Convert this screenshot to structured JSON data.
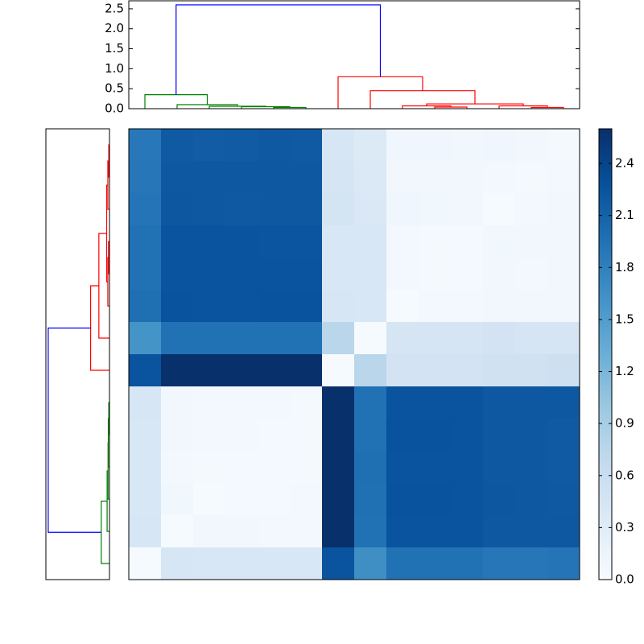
{
  "chart_data": [
    {
      "type": "dendrogram",
      "orientation": "top",
      "xlim": [
        0,
        140
      ],
      "ylim": [
        0,
        2.7
      ],
      "yticks": [
        {
          "value": 0,
          "label": "0.0"
        },
        0.5,
        {
          "value": 1,
          "label": "1.0"
        },
        1.5,
        {
          "value": 2,
          "label": "2.0"
        },
        2.5
      ],
      "links": [
        {
          "x": [
            45,
            45,
            55,
            55
          ],
          "y": [
            0,
            0.03,
            0.03,
            0
          ],
          "color": "#008000"
        },
        {
          "x": [
            35,
            35,
            50,
            50
          ],
          "y": [
            0,
            0.05,
            0.05,
            0.03
          ],
          "color": "#008000"
        },
        {
          "x": [
            25,
            25,
            42.5,
            42.5
          ],
          "y": [
            0,
            0.06,
            0.06,
            0.05
          ],
          "color": "#008000"
        },
        {
          "x": [
            15,
            15,
            33.75,
            33.75
          ],
          "y": [
            0,
            0.1,
            0.1,
            0.06
          ],
          "color": "#008000"
        },
        {
          "x": [
            5,
            5,
            24.375,
            24.375
          ],
          "y": [
            0,
            0.35,
            0.35,
            0.1
          ],
          "color": "#008000"
        },
        {
          "x": [
            95,
            95,
            105,
            105
          ],
          "y": [
            0,
            0.04,
            0.04,
            0
          ],
          "color": "#ff0000"
        },
        {
          "x": [
            85,
            85,
            100,
            100
          ],
          "y": [
            0,
            0.07,
            0.07,
            0.04
          ],
          "color": "#ff0000"
        },
        {
          "x": [
            125,
            125,
            135,
            135
          ],
          "y": [
            0,
            0.03,
            0.03,
            0
          ],
          "color": "#ff0000"
        },
        {
          "x": [
            115,
            115,
            130,
            130
          ],
          "y": [
            0,
            0.07,
            0.07,
            0.03
          ],
          "color": "#ff0000"
        },
        {
          "x": [
            92.5,
            92.5,
            122.5,
            122.5
          ],
          "y": [
            0.07,
            0.12,
            0.12,
            0.07
          ],
          "color": "#ff0000"
        },
        {
          "x": [
            75,
            75,
            107.5,
            107.5
          ],
          "y": [
            0,
            0.45,
            0.45,
            0.12
          ],
          "color": "#ff0000"
        },
        {
          "x": [
            65,
            65,
            91.25,
            91.25
          ],
          "y": [
            0,
            0.8,
            0.8,
            0.45
          ],
          "color": "#ff0000"
        },
        {
          "x": [
            14.6875,
            14.6875,
            78.125,
            78.125
          ],
          "y": [
            0.35,
            2.6,
            2.6,
            0.8
          ],
          "color": "#0000ff"
        }
      ]
    },
    {
      "type": "heatmap",
      "vlim": [
        0,
        2.6
      ],
      "colors": [
        "#f7fbff",
        "#deebf7",
        "#c6dbef",
        "#9ecae1",
        "#6baed6",
        "#4292c6",
        "#2171b5",
        "#08519c",
        "#08306b"
      ],
      "cticks": [
        {
          "value": 0,
          "label": "0.0"
        },
        0.3,
        0.6,
        0.9,
        1.2,
        1.5,
        1.8,
        2.1,
        2.4
      ],
      "values": [
        [
          1.88,
          2.18,
          2.16,
          2.17,
          2.19,
          2.18,
          0.42,
          0.35,
          0.1,
          0.1,
          0.09,
          0.1,
          0.08,
          0.04
        ],
        [
          1.9,
          2.2,
          2.2,
          2.2,
          2.2,
          2.2,
          0.44,
          0.37,
          0.08,
          0.08,
          0.08,
          0.06,
          0.04,
          0.07
        ],
        [
          1.92,
          2.21,
          2.2,
          2.19,
          2.2,
          2.2,
          0.47,
          0.38,
          0.1,
          0.09,
          0.08,
          0.03,
          0.07,
          0.08
        ],
        [
          1.95,
          2.25,
          2.25,
          2.25,
          2.24,
          2.24,
          0.4,
          0.4,
          0.07,
          0.04,
          0.05,
          0.09,
          0.08,
          0.08
        ],
        [
          1.95,
          2.25,
          2.25,
          2.25,
          2.25,
          2.25,
          0.4,
          0.4,
          0.07,
          0.04,
          0.05,
          0.08,
          0.07,
          0.08
        ],
        [
          1.97,
          2.26,
          2.25,
          2.25,
          2.26,
          2.26,
          0.42,
          0.4,
          0.03,
          0.07,
          0.07,
          0.08,
          0.08,
          0.08
        ],
        [
          1.6,
          1.95,
          1.95,
          1.95,
          1.95,
          1.95,
          0.75,
          0.03,
          0.45,
          0.45,
          0.45,
          0.48,
          0.45,
          0.45
        ],
        [
          2.25,
          2.6,
          2.6,
          2.6,
          2.6,
          2.6,
          0.03,
          0.75,
          0.48,
          0.48,
          0.48,
          0.52,
          0.52,
          0.55
        ],
        [
          0.42,
          0.08,
          0.07,
          0.07,
          0.06,
          0.04,
          2.6,
          1.95,
          2.25,
          2.25,
          2.25,
          2.2,
          2.2,
          2.2
        ],
        [
          0.4,
          0.08,
          0.07,
          0.06,
          0.05,
          0.04,
          2.6,
          1.95,
          2.26,
          2.26,
          2.25,
          2.2,
          2.2,
          2.18
        ],
        [
          0.4,
          0.06,
          0.04,
          0.05,
          0.05,
          0.04,
          2.6,
          1.97,
          2.25,
          2.25,
          2.25,
          2.2,
          2.2,
          2.18
        ],
        [
          0.4,
          0.09,
          0.03,
          0.05,
          0.05,
          0.06,
          2.6,
          1.96,
          2.26,
          2.26,
          2.25,
          2.21,
          2.2,
          2.19
        ],
        [
          0.42,
          0.03,
          0.08,
          0.08,
          0.07,
          0.07,
          2.6,
          1.95,
          2.25,
          2.25,
          2.25,
          2.2,
          2.2,
          2.2
        ],
        [
          0.03,
          0.42,
          0.4,
          0.4,
          0.4,
          0.4,
          2.25,
          1.65,
          1.95,
          1.95,
          1.95,
          1.9,
          1.9,
          1.92
        ]
      ]
    },
    {
      "type": "dendrogram",
      "orientation": "left",
      "xlim": [
        2.7,
        0
      ],
      "ylim": [
        0,
        140
      ],
      "links": [
        {
          "x": [
            0,
            0.03,
            0.03,
            0
          ],
          "y": [
            45,
            45,
            55,
            55
          ],
          "color": "#008000"
        },
        {
          "x": [
            0,
            0.05,
            0.05,
            0.03
          ],
          "y": [
            35,
            35,
            50,
            50
          ],
          "color": "#008000"
        },
        {
          "x": [
            0,
            0.06,
            0.06,
            0.05
          ],
          "y": [
            25,
            25,
            42.5,
            42.5
          ],
          "color": "#008000"
        },
        {
          "x": [
            0,
            0.1,
            0.1,
            0.06
          ],
          "y": [
            15,
            15,
            33.75,
            33.75
          ],
          "color": "#008000"
        },
        {
          "x": [
            0,
            0.35,
            0.35,
            0.1
          ],
          "y": [
            5,
            5,
            24.375,
            24.375
          ],
          "color": "#008000"
        },
        {
          "x": [
            0,
            0.04,
            0.04,
            0
          ],
          "y": [
            95,
            95,
            105,
            105
          ],
          "color": "#ff0000"
        },
        {
          "x": [
            0,
            0.07,
            0.07,
            0.04
          ],
          "y": [
            85,
            85,
            100,
            100
          ],
          "color": "#ff0000"
        },
        {
          "x": [
            0,
            0.03,
            0.03,
            0
          ],
          "y": [
            125,
            125,
            135,
            135
          ],
          "color": "#ff0000"
        },
        {
          "x": [
            0,
            0.07,
            0.07,
            0.03
          ],
          "y": [
            115,
            115,
            130,
            130
          ],
          "color": "#ff0000"
        },
        {
          "x": [
            0.07,
            0.12,
            0.12,
            0.07
          ],
          "y": [
            92.5,
            92.5,
            122.5,
            122.5
          ],
          "color": "#ff0000"
        },
        {
          "x": [
            0,
            0.45,
            0.45,
            0.12
          ],
          "y": [
            75,
            75,
            107.5,
            107.5
          ],
          "color": "#ff0000"
        },
        {
          "x": [
            0,
            0.8,
            0.8,
            0.45
          ],
          "y": [
            65,
            65,
            91.25,
            91.25
          ],
          "color": "#ff0000"
        },
        {
          "x": [
            0.35,
            2.6,
            2.6,
            0.8
          ],
          "y": [
            14.6875,
            14.6875,
            78.125,
            78.125
          ],
          "color": "#0000ff"
        }
      ]
    }
  ]
}
